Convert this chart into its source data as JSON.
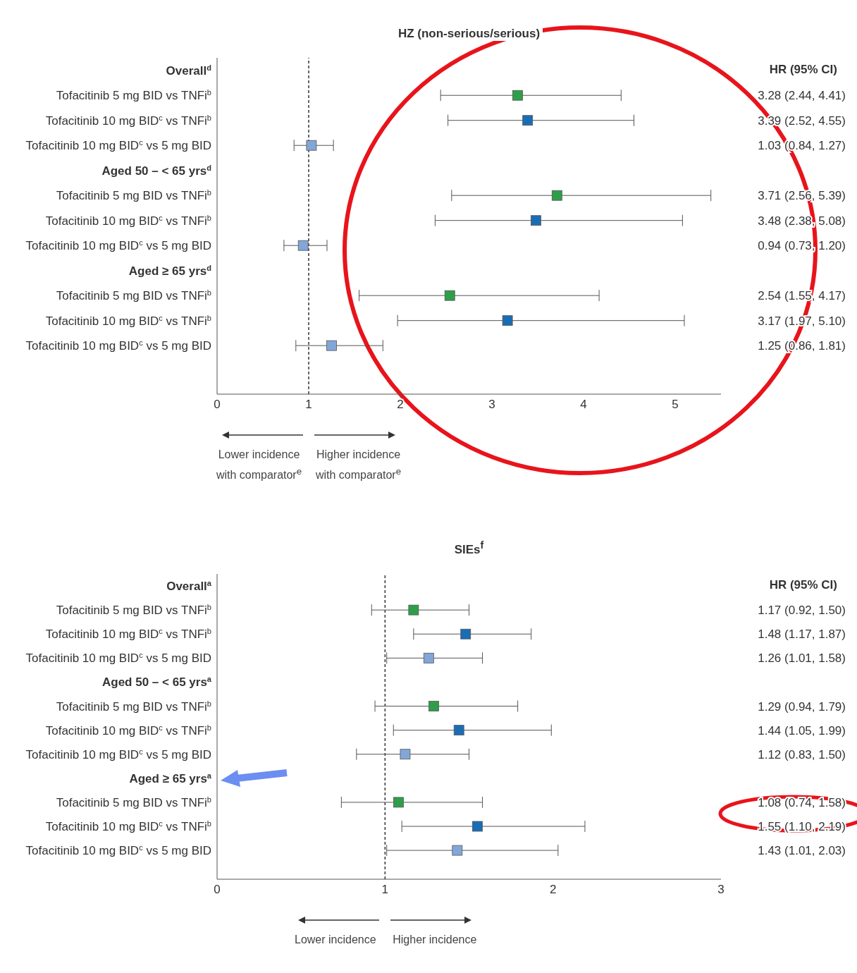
{
  "chart_data": [
    {
      "type": "scatter",
      "orientation": "horizontal",
      "title": "HZ (non-serious/serious)",
      "categories": [
        "Overall$^{d}$",
        "Tofacitinib 5 mg BID vs TNFi$^{b}$",
        "Tofacitinib 10 mg BID$^{c}$ vs TNFi$^{b}$",
        "Tofacitinib 10 mg BID$^{c}$ vs 5 mg BID",
        "Aged 50 – < 65 yrs$^{d}$",
        "Tofacitinib 5 mg BID vs TNFi$^{b}$",
        "Tofacitinib 10 mg BID$^{c}$ vs TNFi$^{b}$",
        "Tofacitinib 10 mg BID$^{c}$ vs 5 mg BID",
        "Aged ≥ 65 yrs$^{d}$",
        "Tofacitinib 5 mg BID vs TNFi$^{b}$",
        "Tofacitinib 10 mg BID$^{c}$ vs TNFi$^{b}$",
        "Tofacitinib 10 mg BID$^{c}$ vs 5 mg BID"
      ],
      "values": [
        null,
        3.28,
        3.39,
        1.03,
        null,
        3.71,
        3.48,
        0.94,
        null,
        2.54,
        3.17,
        1.25
      ],
      "errors": [
        null,
        [
          2.44,
          4.41
        ],
        [
          2.52,
          4.55
        ],
        [
          0.84,
          1.27
        ],
        null,
        [
          2.56,
          5.39
        ],
        [
          2.38,
          5.08
        ],
        [
          0.73,
          1.2
        ],
        null,
        [
          1.55,
          4.17
        ],
        [
          1.97,
          5.1
        ],
        [
          0.86,
          1.81
        ]
      ],
      "value_labels": [
        null,
        "3.28 (2.44, 4.41)",
        "3.39 (2.52, 4.55)",
        "1.03 (0.84, 1.27)",
        null,
        "3.71 (2.56, 5.39)",
        "3.48 (2.38, 5.08)",
        "0.94 (0.73, 1.20)",
        null,
        "2.54 (1.55, 4.17)",
        "3.17 (1.97, 5.10)",
        "1.25 (0.86, 1.81)"
      ],
      "colors": [
        null,
        "#2e9e4a",
        "#1a6db5",
        "#82a6d8",
        null,
        "#2e9e4a",
        "#1a6db5",
        "#82a6d8",
        null,
        "#2e9e4a",
        "#1a6db5",
        "#82a6d8"
      ],
      "xlim": [
        0,
        5.5
      ],
      "xticks": [
        0,
        1,
        2,
        3,
        4,
        5
      ],
      "marker": "square",
      "grid": false,
      "legend": false,
      "ref_lines": [
        {
          "axis": "x",
          "value": 1,
          "line_style": "dashed",
          "color": "#333333"
        }
      ],
      "annotations": [
        "HR (95% CI)",
        "Lower incidence with comparator$^{e}$",
        "Higher incidence with comparator$^{e}$"
      ]
    },
    {
      "type": "scatter",
      "orientation": "horizontal",
      "title": "SIEs$^{f}$",
      "categories": [
        "Overall$^{a}$",
        "Tofacitinib 5 mg BID vs TNFi$^{b}$",
        "Tofacitinib 10 mg BID$^{c}$ vs TNFi$^{b}$",
        "Tofacitinib 10 mg BID$^{c}$ vs 5 mg BID",
        "Aged 50 – < 65 yrs$^{a}$",
        "Tofacitinib 5 mg BID vs TNFi$^{b}$",
        "Tofacitinib 10 mg BID$^{c}$ vs TNFi$^{b}$",
        "Tofacitinib 10 mg BID$^{c}$ vs 5 mg BID",
        "Aged ≥ 65 yrs$^{a}$",
        "Tofacitinib 5 mg BID vs TNFi$^{b}$",
        "Tofacitinib 10 mg BID$^{c}$ vs TNFi$^{b}$",
        "Tofacitinib 10 mg BID$^{c}$ vs 5 mg BID"
      ],
      "values": [
        null,
        1.17,
        1.48,
        1.26,
        null,
        1.29,
        1.44,
        1.12,
        null,
        1.08,
        1.55,
        1.43
      ],
      "errors": [
        null,
        [
          0.92,
          1.5
        ],
        [
          1.17,
          1.87
        ],
        [
          1.01,
          1.58
        ],
        null,
        [
          0.94,
          1.79
        ],
        [
          1.05,
          1.99
        ],
        [
          0.83,
          1.5
        ],
        null,
        [
          0.74,
          1.58
        ],
        [
          1.1,
          2.19
        ],
        [
          1.01,
          2.03
        ]
      ],
      "value_labels": [
        null,
        "1.17 (0.92, 1.50)",
        "1.48 (1.17, 1.87)",
        "1.26 (1.01, 1.58)",
        null,
        "1.29 (0.94, 1.79)",
        "1.44 (1.05, 1.99)",
        "1.12 (0.83, 1.50)",
        null,
        "1.08 (0.74, 1.58)",
        "1.55 (1.10, 2.19)",
        "1.43 (1.01, 2.03)"
      ],
      "colors": [
        null,
        "#2e9e4a",
        "#1a6db5",
        "#82a6d8",
        null,
        "#2e9e4a",
        "#1a6db5",
        "#82a6d8",
        null,
        "#2e9e4a",
        "#1a6db5",
        "#82a6d8"
      ],
      "xlim": [
        0,
        3
      ],
      "xticks": [
        0,
        1,
        2,
        3
      ],
      "marker": "square",
      "grid": false,
      "legend": false,
      "ref_lines": [
        {
          "axis": "x",
          "value": 1,
          "line_style": "dashed",
          "color": "#333333"
        }
      ],
      "annotations": [
        "HR (95% CI)",
        "Lower incidence",
        "Higher incidence"
      ]
    }
  ]
}
